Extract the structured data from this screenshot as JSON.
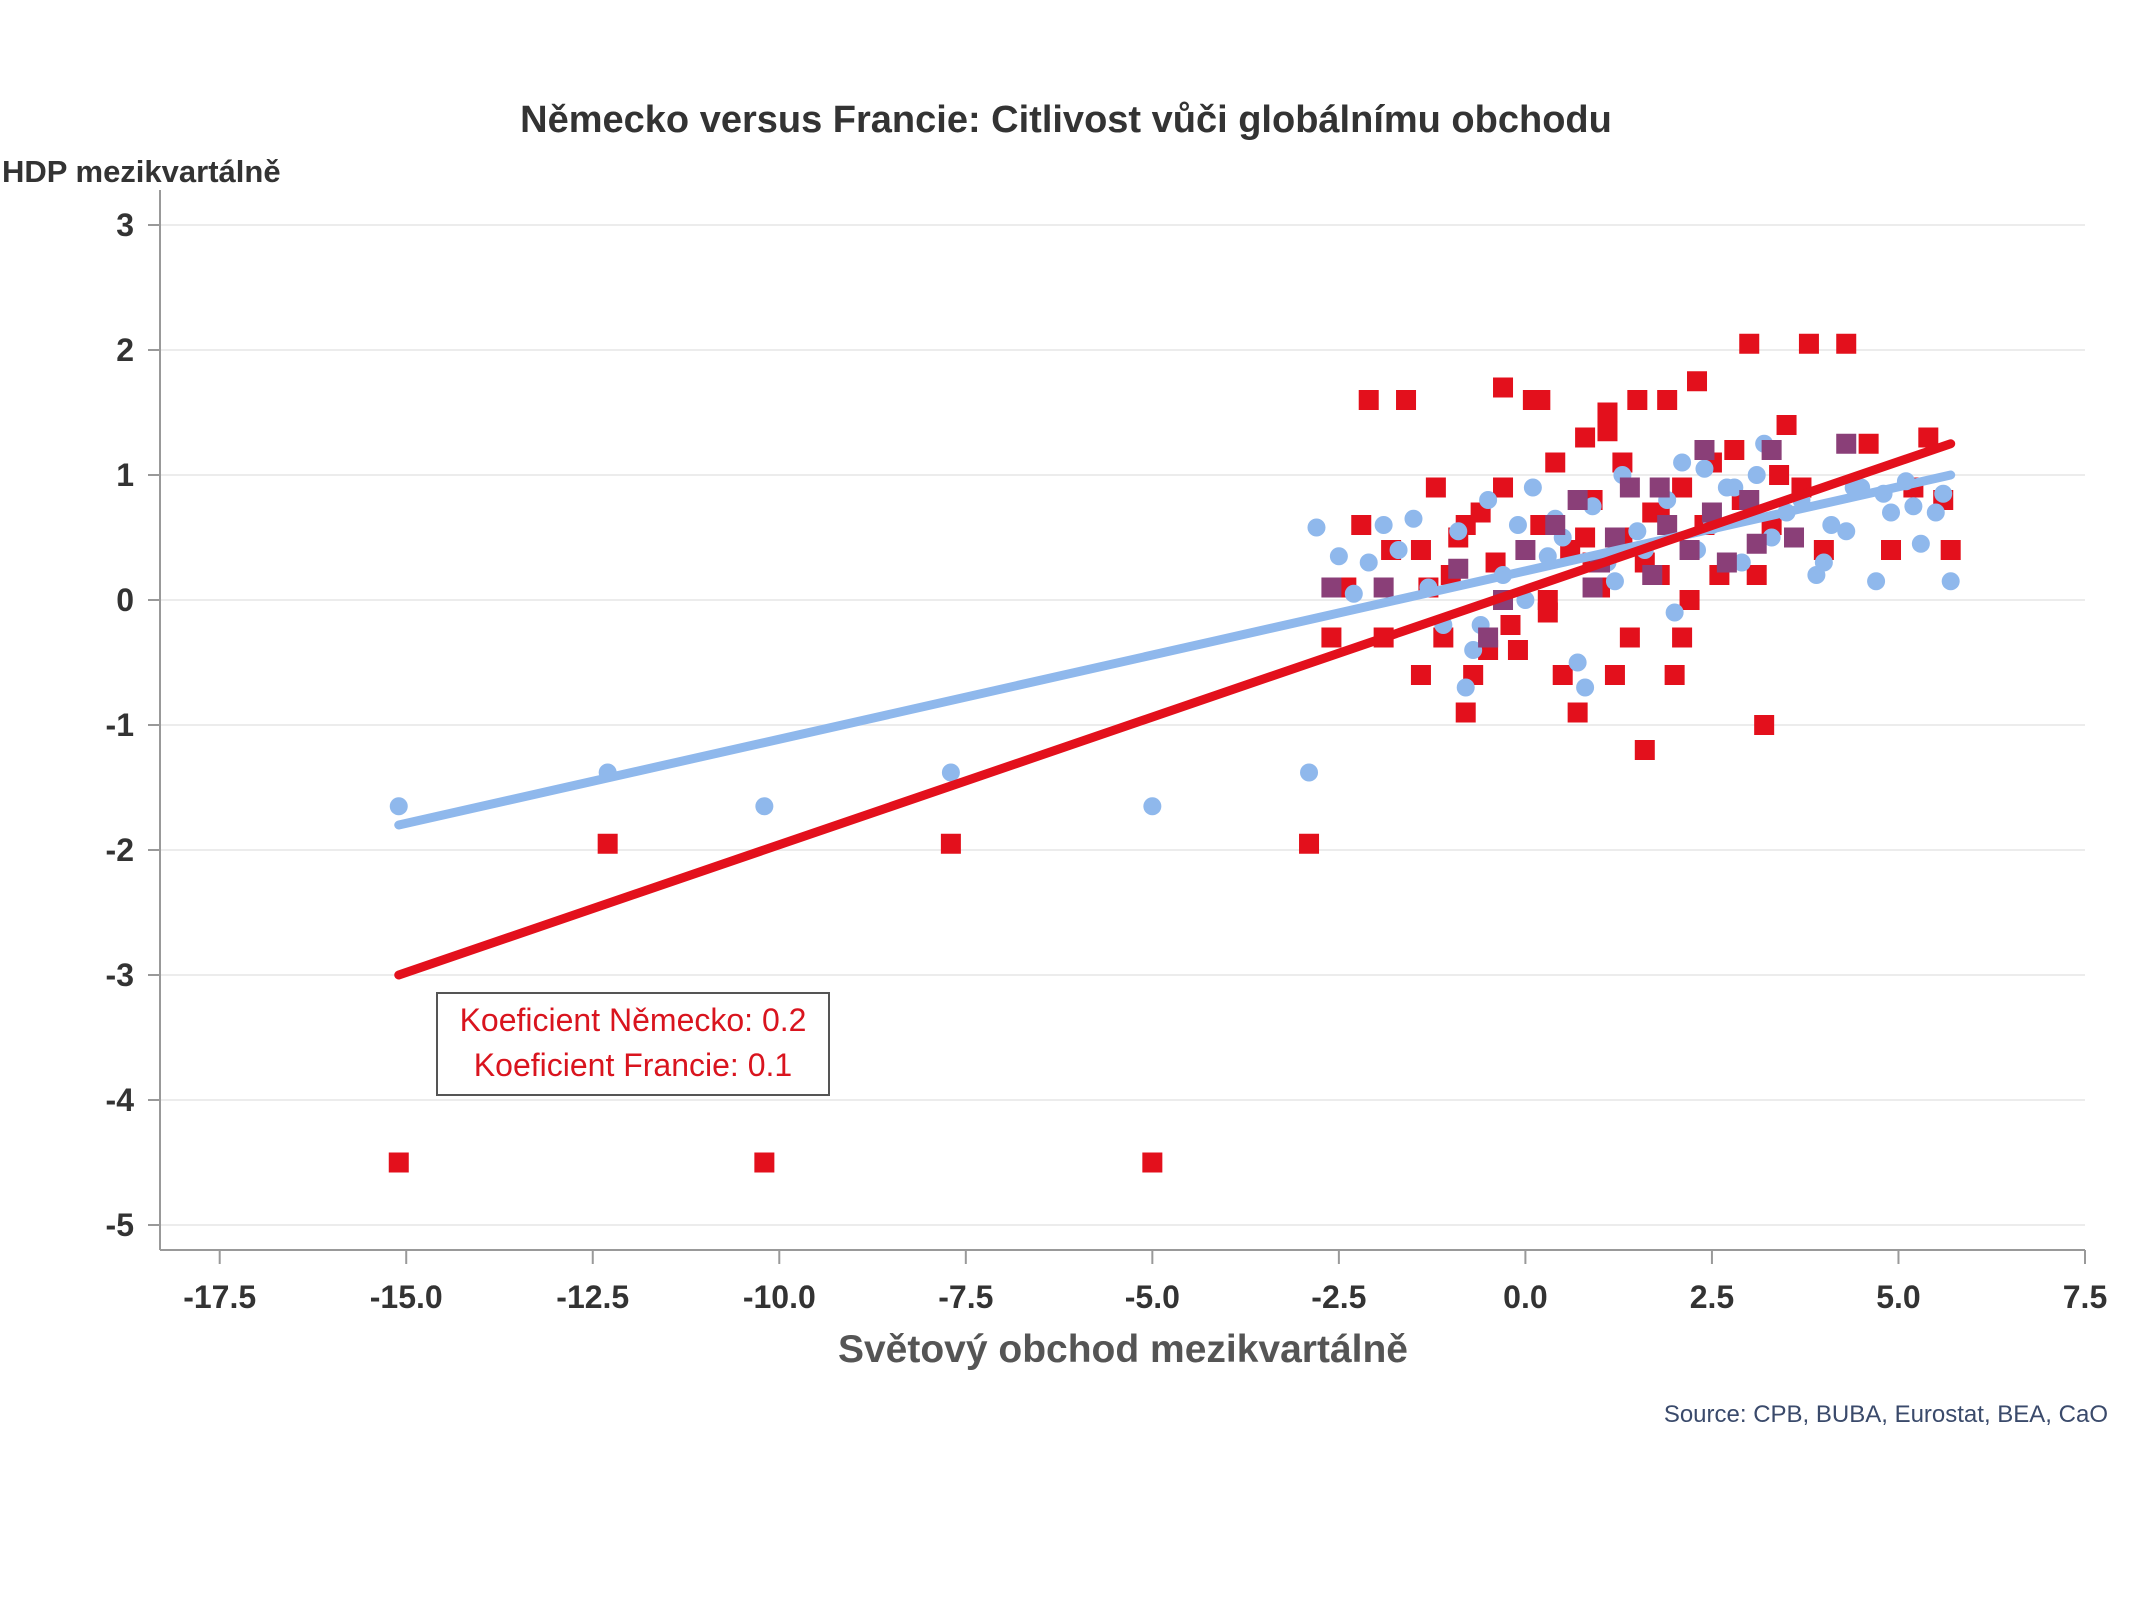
{
  "chart_data": {
    "type": "scatter",
    "title": "Německo versus Francie: Citlivost vůči globálnímu obchodu",
    "xlabel": "Světový obchod mezikvartálně",
    "ylabel": "HDP mezikvartálně",
    "source": "Source: CPB, BUBA, Eurostat, BEA, CaO",
    "xlim": [
      -18.3,
      7.5
    ],
    "ylim": [
      -5.2,
      3.2
    ],
    "x_ticks": [
      -17.5,
      -15.0,
      -12.5,
      -10.0,
      -7.5,
      -5.0,
      -2.5,
      0.0,
      2.5,
      5.0,
      7.5
    ],
    "x_tick_labels": [
      "-17.5",
      "-15.0",
      "-12.5",
      "-10.0",
      "-7.5",
      "-5.0",
      "-2.5",
      "0.0",
      "2.5",
      "5.0",
      "7.5"
    ],
    "y_ticks": [
      3,
      2,
      1,
      0,
      -1,
      -2,
      -3,
      -4,
      -5
    ],
    "y_tick_labels": [
      "3",
      "2",
      "1",
      "0",
      "-1",
      "-2",
      "-3",
      "-4",
      "-5"
    ],
    "grid": true,
    "legend": "none",
    "annotation_lines": [
      "Koeficient Německo: 0.2",
      "Koeficient Francie: 0.1"
    ],
    "colors": {
      "germany": "#e3101c",
      "france": "#8fb8ec",
      "overlap": "#8a3f78",
      "grid": "#e6e6e6",
      "axis": "#999999"
    },
    "series": [
      {
        "id": "germany",
        "marker": "square",
        "color": "#e3101c",
        "x": [
          -15.1,
          -12.3,
          -10.2,
          -7.7,
          -5.0,
          -2.9,
          -2.6,
          -2.4,
          -2.2,
          -2.1,
          -1.9,
          -1.8,
          -1.6,
          -1.4,
          -1.3,
          -1.2,
          -1.1,
          -1.0,
          -0.9,
          -0.8,
          -0.7,
          -0.6,
          -0.5,
          -0.4,
          -0.3,
          -0.2,
          -0.1,
          0.1,
          0.2,
          0.3,
          0.4,
          0.5,
          0.6,
          0.7,
          0.8,
          0.9,
          1.0,
          1.1,
          1.2,
          1.3,
          1.4,
          1.5,
          1.6,
          1.7,
          1.8,
          1.9,
          2.0,
          2.1,
          2.2,
          2.3,
          2.4,
          2.6,
          2.8,
          3.0,
          3.2,
          3.3,
          3.5,
          3.7,
          3.8,
          4.0,
          4.3,
          4.6,
          4.9,
          5.2,
          5.4,
          5.6,
          5.7,
          -1.4,
          -0.3,
          0.2,
          0.9,
          1.3,
          2.1,
          2.9,
          3.4,
          0.8,
          1.6,
          2.5,
          -0.8,
          0.3,
          1.1,
          1.8,
          3.1
        ],
        "y": [
          -4.5,
          -1.95,
          -4.5,
          -1.95,
          -4.5,
          -1.95,
          -0.3,
          0.1,
          0.6,
          1.6,
          -0.3,
          0.4,
          1.6,
          0.4,
          0.1,
          0.9,
          -0.3,
          0.2,
          0.5,
          -0.9,
          -0.6,
          0.7,
          -0.4,
          0.3,
          0.9,
          -0.2,
          -0.4,
          1.6,
          0.6,
          0.0,
          1.1,
          -0.6,
          0.4,
          -0.9,
          1.3,
          0.8,
          0.1,
          1.5,
          -0.6,
          0.5,
          -0.3,
          1.6,
          -1.2,
          0.7,
          0.2,
          1.6,
          -0.6,
          0.9,
          0.0,
          1.75,
          0.6,
          0.2,
          1.2,
          2.05,
          -1.0,
          0.6,
          1.4,
          0.9,
          2.05,
          0.4,
          2.05,
          1.25,
          0.4,
          0.9,
          1.3,
          0.8,
          0.4,
          -0.6,
          1.7,
          1.6,
          0.3,
          1.1,
          -0.3,
          0.8,
          1.0,
          0.5,
          0.3,
          1.1,
          0.6,
          -0.1,
          1.35,
          0.7,
          0.2
        ]
      },
      {
        "id": "france",
        "marker": "circle",
        "color": "#8fb8ec",
        "x": [
          -15.1,
          -12.3,
          -10.2,
          -7.7,
          -5.0,
          -2.9,
          -2.8,
          -2.5,
          -2.3,
          -2.1,
          -1.9,
          -1.7,
          -1.5,
          -1.3,
          -1.1,
          -0.9,
          -0.7,
          -0.5,
          -0.3,
          -0.1,
          0.1,
          0.3,
          0.5,
          0.7,
          0.9,
          1.1,
          1.3,
          1.5,
          1.7,
          1.9,
          2.1,
          2.3,
          2.5,
          2.7,
          2.9,
          3.1,
          3.3,
          3.5,
          3.7,
          3.9,
          4.1,
          4.3,
          4.5,
          4.7,
          4.9,
          5.1,
          5.3,
          5.5,
          5.7,
          -0.8,
          0.0,
          0.8,
          1.6,
          2.4,
          3.2,
          4.0,
          4.8,
          5.6,
          -0.6,
          0.4,
          1.2,
          2.0,
          2.8,
          3.6,
          4.4,
          5.2
        ],
        "y": [
          -1.65,
          -1.38,
          -1.65,
          -1.38,
          -1.65,
          -1.38,
          0.58,
          0.35,
          0.05,
          0.3,
          0.6,
          0.4,
          0.65,
          0.1,
          -0.2,
          0.55,
          -0.4,
          0.8,
          0.2,
          0.6,
          0.9,
          0.35,
          0.5,
          -0.5,
          0.75,
          0.3,
          1.0,
          0.55,
          0.2,
          0.8,
          1.1,
          0.4,
          0.6,
          0.9,
          0.3,
          1.0,
          0.5,
          0.7,
          0.8,
          0.2,
          0.6,
          0.55,
          0.9,
          0.15,
          0.7,
          0.95,
          0.45,
          0.7,
          0.15,
          -0.7,
          0.0,
          -0.7,
          0.4,
          1.05,
          1.25,
          0.3,
          0.85,
          0.85,
          -0.2,
          0.65,
          0.15,
          -0.1,
          0.9,
          0.5,
          0.9,
          0.75
        ]
      },
      {
        "id": "overlap",
        "marker": "square",
        "color": "#8a3f78",
        "x": [
          -2.6,
          -1.9,
          -0.9,
          -0.5,
          0.0,
          0.4,
          0.7,
          1.0,
          1.2,
          1.4,
          1.7,
          1.9,
          2.2,
          2.5,
          2.7,
          3.0,
          3.3,
          3.6,
          4.3,
          -0.3,
          0.9,
          1.8,
          2.4,
          3.1
        ],
        "y": [
          0.1,
          0.1,
          0.25,
          -0.3,
          0.4,
          0.6,
          0.8,
          0.3,
          0.5,
          0.9,
          0.2,
          0.6,
          0.4,
          0.7,
          0.3,
          0.8,
          1.2,
          0.5,
          1.25,
          0.0,
          0.1,
          0.9,
          1.2,
          0.45
        ]
      }
    ],
    "trendlines": [
      {
        "id": "france-fit",
        "color": "#8fb8ec",
        "x": [
          -15.1,
          5.7
        ],
        "y": [
          -1.8,
          1.0
        ]
      },
      {
        "id": "germany-fit",
        "color": "#e3101c",
        "x": [
          -15.1,
          5.7
        ],
        "y": [
          -3.0,
          1.25
        ]
      }
    ]
  }
}
